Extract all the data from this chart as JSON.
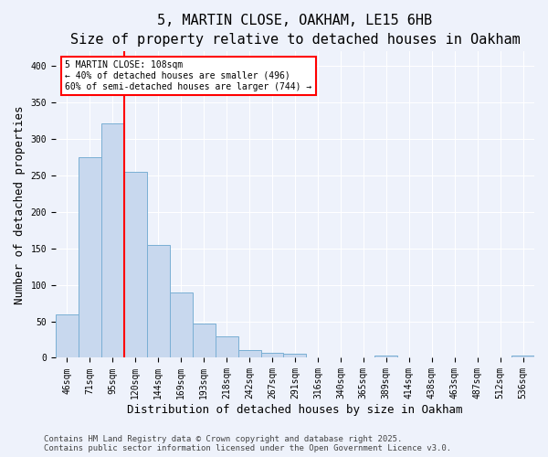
{
  "title1": "5, MARTIN CLOSE, OAKHAM, LE15 6HB",
  "title2": "Size of property relative to detached houses in Oakham",
  "xlabel": "Distribution of detached houses by size in Oakham",
  "ylabel": "Number of detached properties",
  "categories": [
    "46sqm",
    "71sqm",
    "95sqm",
    "120sqm",
    "144sqm",
    "169sqm",
    "193sqm",
    "218sqm",
    "242sqm",
    "267sqm",
    "291sqm",
    "316sqm",
    "340sqm",
    "365sqm",
    "389sqm",
    "414sqm",
    "438sqm",
    "463sqm",
    "487sqm",
    "512sqm",
    "536sqm"
  ],
  "values": [
    60,
    275,
    322,
    255,
    155,
    90,
    47,
    30,
    11,
    7,
    6,
    1,
    1,
    0,
    3,
    1,
    0,
    0,
    0,
    0,
    3
  ],
  "bar_color": "#c8d8ee",
  "bar_edge_color": "#7aafd4",
  "red_line_x": 2.5,
  "annotation_line1": "5 MARTIN CLOSE: 108sqm",
  "annotation_line2": "← 40% of detached houses are smaller (496)",
  "annotation_line3": "60% of semi-detached houses are larger (744) →",
  "annotation_box_color": "white",
  "annotation_box_edge_color": "red",
  "vline_color": "red",
  "ylim": [
    0,
    420
  ],
  "yticks": [
    0,
    50,
    100,
    150,
    200,
    250,
    300,
    350,
    400
  ],
  "footnote1": "Contains HM Land Registry data © Crown copyright and database right 2025.",
  "footnote2": "Contains public sector information licensed under the Open Government Licence v3.0.",
  "background_color": "#eef2fb",
  "grid_color": "white",
  "title1_fontsize": 11,
  "title2_fontsize": 10,
  "tick_fontsize": 7,
  "label_fontsize": 9,
  "footnote_fontsize": 6.5
}
